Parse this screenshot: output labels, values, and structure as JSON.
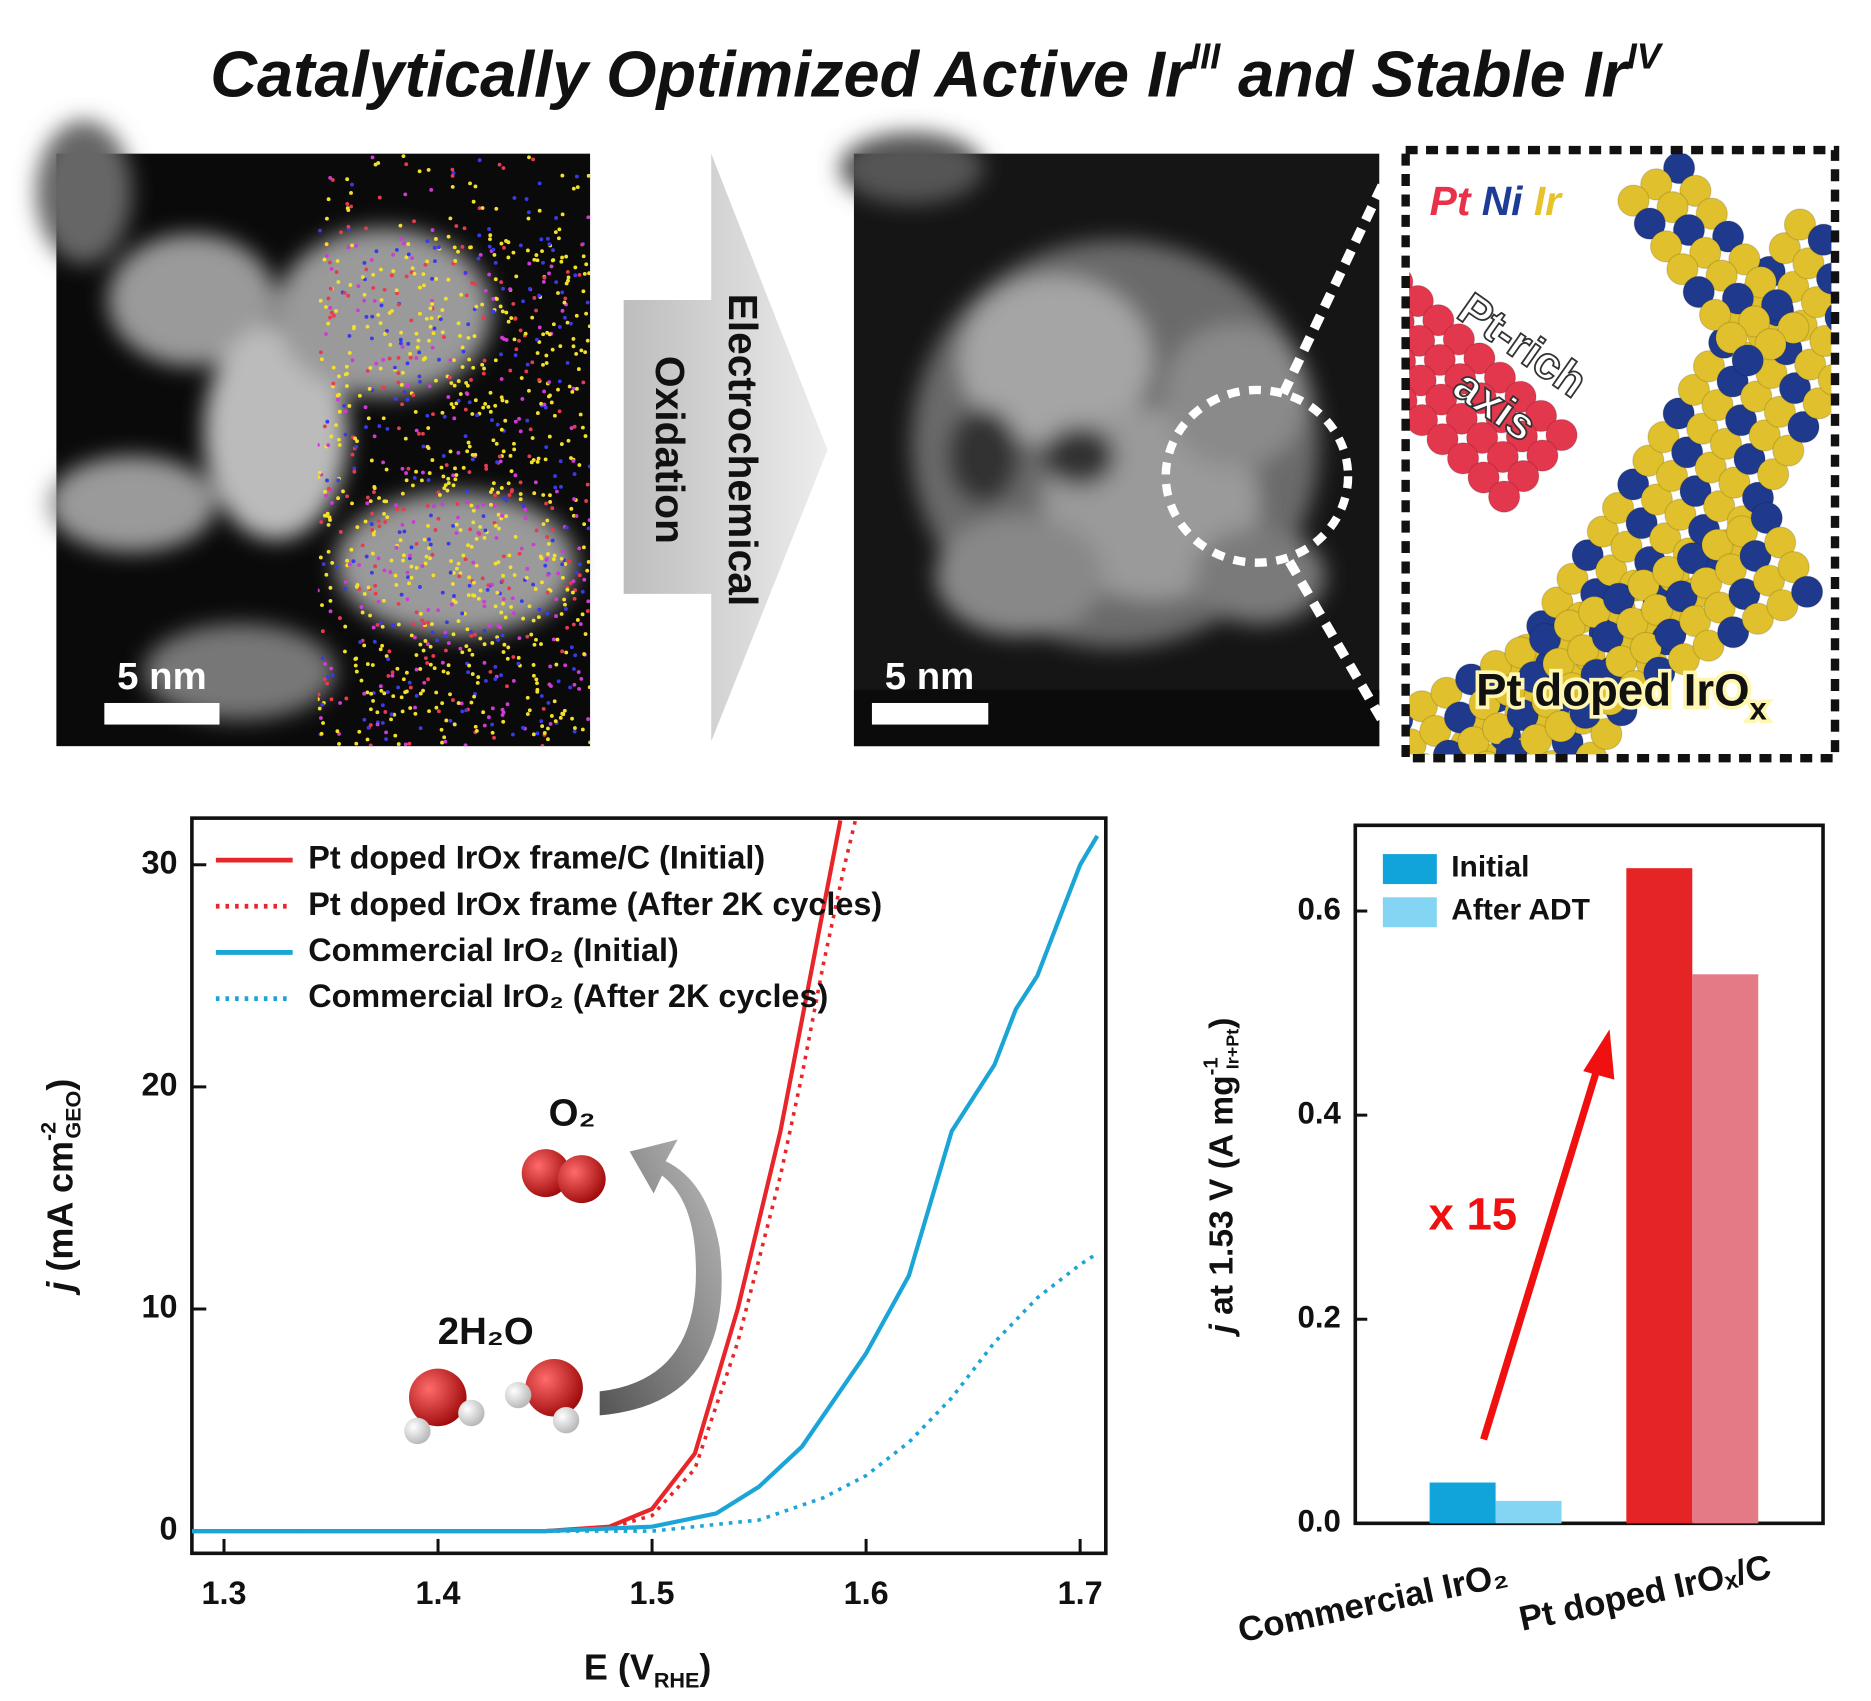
{
  "title": [
    "Catalytically Optimized Active Ir",
    "III",
    " and Stable Ir",
    "IV"
  ],
  "images": {
    "scale_bar_left": "5 nm",
    "scale_bar_right": "5 nm",
    "arrow_text": [
      "Electrochemical",
      "Oxidation"
    ],
    "elements": [
      "Pt",
      "Ni",
      "Ir"
    ],
    "axis_label": [
      "Pt-rich",
      "axis"
    ],
    "material": [
      "Pt doped IrO",
      "x"
    ]
  },
  "chart_data": [
    {
      "type": "line",
      "xlabel": [
        "E (V",
        "RHE",
        ")"
      ],
      "ylabel": [
        "j",
        " (mA cm",
        "-2",
        "GEO",
        ")"
      ],
      "xlim": [
        1.285,
        1.712
      ],
      "ylim": [
        -1,
        32.1
      ],
      "xticks": [
        1.3,
        1.4,
        1.5,
        1.6,
        1.7
      ],
      "yticks": [
        0,
        10,
        20,
        30
      ],
      "legend": "upper left",
      "annotations": [
        "O₂",
        "2H₂O"
      ],
      "series": [
        {
          "name": "Pt doped IrOx frame/C (Initial)",
          "color": "#e8262a",
          "style": "solid",
          "x": [
            1.285,
            1.45,
            1.48,
            1.5,
            1.52,
            1.54,
            1.56,
            1.57,
            1.58,
            1.588
          ],
          "values": [
            0,
            0,
            0.2,
            1,
            3.5,
            10,
            18,
            23,
            28,
            32
          ]
        },
        {
          "name": "Pt doped IrOx frame (After 2K cycles)",
          "color": "#e8262a",
          "style": "dotted",
          "x": [
            1.285,
            1.45,
            1.48,
            1.5,
            1.52,
            1.54,
            1.56,
            1.57,
            1.58,
            1.59,
            1.595
          ],
          "values": [
            0,
            0,
            0.15,
            0.7,
            2.8,
            8.5,
            16,
            20.5,
            25.5,
            30,
            32
          ]
        },
        {
          "name": "Commercial IrO₂ (Initial)",
          "color": "#1aa5d6",
          "style": "solid",
          "x": [
            1.285,
            1.45,
            1.5,
            1.53,
            1.55,
            1.57,
            1.6,
            1.62,
            1.64,
            1.66,
            1.67,
            1.68,
            1.69,
            1.7,
            1.708
          ],
          "values": [
            0,
            0,
            0.2,
            0.8,
            2,
            3.8,
            8,
            11.5,
            18,
            21,
            23.5,
            25,
            27.5,
            30,
            31.3
          ]
        },
        {
          "name": "Commercial IrO₂ (After 2K cycles)",
          "color": "#1aa5d6",
          "style": "dotted",
          "x": [
            1.285,
            1.5,
            1.55,
            1.58,
            1.6,
            1.62,
            1.64,
            1.66,
            1.68,
            1.7,
            1.708
          ],
          "values": [
            0,
            0,
            0.5,
            1.5,
            2.5,
            4,
            6,
            8.5,
            10.5,
            12,
            12.5
          ]
        }
      ]
    },
    {
      "type": "bar",
      "ylabel": [
        "j",
        " at 1.53 V (A mg",
        "-1",
        "Ir+Pt",
        ")"
      ],
      "categories": [
        "Commercial IrO₂",
        "Pt doped IrOₓ/C"
      ],
      "ylim": [
        0,
        0.684
      ],
      "yticks": [
        {
          "value": 0,
          "label": "0.0"
        },
        0.2,
        0.4,
        0.6
      ],
      "legend": "upper left",
      "annotation": "x 15",
      "series": [
        {
          "name": "Initial",
          "colors": [
            "#11a4da",
            "#e52426"
          ],
          "values": [
            0.04,
            0.642
          ]
        },
        {
          "name": "After ADT",
          "colors": [
            "#83d5f3",
            "#e47a86"
          ],
          "values": [
            0.022,
            0.538
          ]
        }
      ]
    }
  ]
}
